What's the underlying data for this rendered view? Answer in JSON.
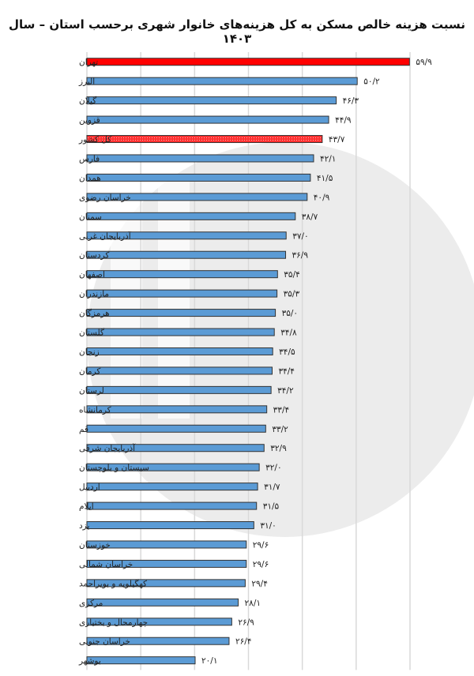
{
  "chart_data": {
    "type": "bar",
    "orientation": "horizontal",
    "title": "نسبت هزینه خالص مسکن به کل هزینه‌های خانوار شهری برحسب استان – سال ۱۴۰۳",
    "categories": [
      "تهران",
      "البرز",
      "گیلان",
      "قزوین",
      "کل کشور",
      "فارس",
      "همدان",
      "خراسان رضوی",
      "سمنان",
      "آذربایجان غربی",
      "کردستان",
      "اصفهان",
      "مازندران",
      "هرمزگان",
      "گلستان",
      "زنجان",
      "کرمان",
      "لرستان",
      "کرمانشاه",
      "قم",
      "آذربایجان شرقی",
      "سیستان و بلوچستان",
      "اردبیل",
      "ایلام",
      "یزد",
      "خوزستان",
      "خراسان شمالی",
      "کهگیلویه و بویراحمد",
      "مرکزی",
      "چهارمحال و بختیاری",
      "خراسان جنوبی",
      "بوشهر"
    ],
    "values": [
      59.9,
      50.2,
      46.3,
      44.9,
      43.7,
      42.1,
      41.5,
      40.9,
      38.7,
      37.0,
      36.9,
      35.4,
      35.3,
      35.0,
      34.8,
      34.5,
      34.4,
      34.2,
      33.4,
      33.2,
      32.9,
      32.0,
      31.7,
      31.5,
      31.0,
      29.6,
      29.6,
      29.4,
      28.1,
      26.9,
      26.4,
      20.1
    ],
    "data_labels": [
      "۵۹/۹",
      "۵۰/۲",
      "۴۶/۳",
      "۴۴/۹",
      "۴۳/۷",
      "۴۲/۱",
      "۴۱/۵",
      "۴۰/۹",
      "۳۸/۷",
      "۳۷/۰",
      "۳۶/۹",
      "۳۵/۴",
      "۳۵/۳",
      "۳۵/۰",
      "۳۴/۸",
      "۳۴/۵",
      "۳۴/۴",
      "۳۴/۲",
      "۳۳/۴",
      "۳۳/۲",
      "۳۲/۹",
      "۳۲/۰",
      "۳۱/۷",
      "۳۱/۵",
      "۳۱/۰",
      "۲۹/۶",
      "۲۹/۶",
      "۲۹/۴",
      "۲۸/۱",
      "۲۶/۹",
      "۲۶/۴",
      "۲۰/۱"
    ],
    "xlim": [
      0,
      60
    ],
    "grid": true,
    "colors": {
      "default": "#5b9bd5",
      "highlight": "#ff0000",
      "national": "#ff4d4d"
    },
    "highlight": {
      "تهران": "highlight",
      "کل کشور": "national"
    }
  },
  "watermark": "مرکز آمار ایران"
}
